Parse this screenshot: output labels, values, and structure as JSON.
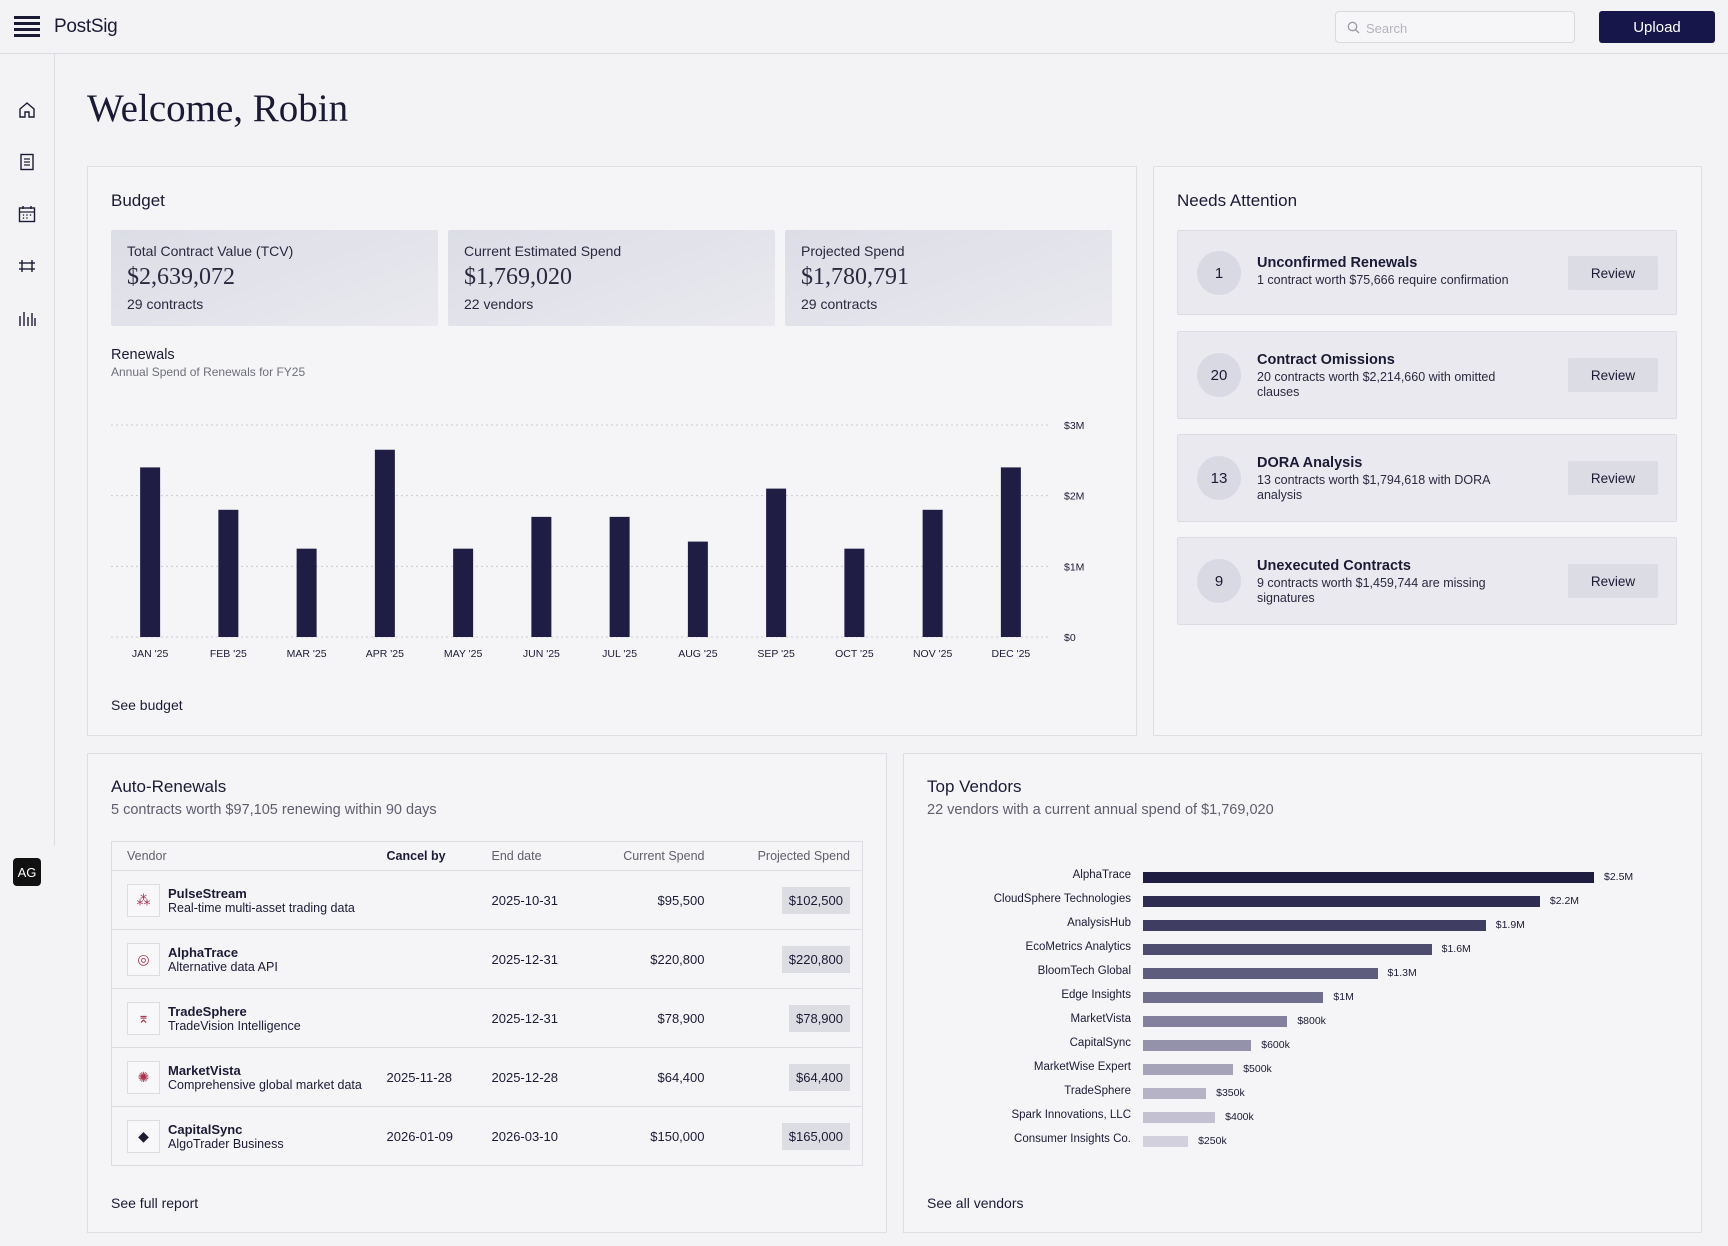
{
  "app": {
    "brand": "PostSig",
    "search_placeholder": "Search",
    "upload_label": "Upload",
    "avatar_initials": "AG"
  },
  "nav": [
    {
      "icon": "home-icon"
    },
    {
      "icon": "document-icon"
    },
    {
      "icon": "calendar-icon"
    },
    {
      "icon": "sliders-icon"
    },
    {
      "icon": "bar-chart-icon"
    }
  ],
  "welcome": "Welcome, Robin",
  "budget": {
    "title": "Budget",
    "stats": [
      {
        "label": "Total Contract Value (TCV)",
        "value": "$2,639,072",
        "count": "29 contracts"
      },
      {
        "label": "Current Estimated Spend",
        "value": "$1,769,020",
        "count": "22 vendors"
      },
      {
        "label": "Projected Spend",
        "value": "$1,780,791",
        "count": "29 contracts"
      }
    ],
    "renewals_title": "Renewals",
    "renewals_sub": "Annual Spend of Renewals for FY25",
    "see_link": "See budget"
  },
  "chart_data": [
    {
      "type": "bar",
      "title": "Renewals",
      "subtitle": "Annual Spend of Renewals for FY25",
      "categories": [
        "JAN '25",
        "FEB '25",
        "MAR '25",
        "APR '25",
        "MAY '25",
        "JUN '25",
        "JUL '25",
        "AUG '25",
        "SEP '25",
        "OCT '25",
        "NOV '25",
        "DEC '25"
      ],
      "values": [
        2400000,
        1800000,
        1250000,
        2650000,
        1250000,
        1700000,
        1700000,
        1350000,
        2100000,
        1250000,
        1800000,
        2400000
      ],
      "ylim": [
        0,
        3000000
      ],
      "yticks": [
        "$0",
        "$1M",
        "$2M",
        "$3M"
      ],
      "xlabel": "",
      "ylabel": "",
      "grid": true,
      "color": "#201d45"
    },
    {
      "type": "bar",
      "orientation": "horizontal",
      "title": "Top Vendors",
      "subtitle": "22 vendors with a current annual spend of $1,769,020",
      "categories": [
        "AlphaTrace",
        "CloudSphere Technologies",
        "AnalysisHub",
        "EcoMetrics Analytics",
        "BloomTech Global",
        "Edge Insights",
        "MarketVista",
        "CapitalSync",
        "MarketWise Expert",
        "TradeSphere",
        "Spark Innovations, LLC",
        "Consumer Insights Co."
      ],
      "values": [
        2500000,
        2200000,
        1900000,
        1600000,
        1300000,
        1000000,
        800000,
        600000,
        500000,
        350000,
        400000,
        250000
      ],
      "value_labels": [
        "$2.5M",
        "$2.2M",
        "$1.9M",
        "$1.6M",
        "$1.3M",
        "$1M",
        "$800k",
        "$600k",
        "$500k",
        "$350k",
        "$400k",
        "$250k"
      ],
      "colors": [
        "#1e1c40",
        "#2e2c50",
        "#3f3d61",
        "#4e4c6f",
        "#5f5d7e",
        "#706e8d",
        "#82809c",
        "#9492ab",
        "#a5a3b8",
        "#b5b3c5",
        "#c3c1d1",
        "#d1d0dc"
      ]
    }
  ],
  "attention": {
    "title": "Needs Attention",
    "review_label": "Review",
    "items": [
      {
        "count": "1",
        "title": "Unconfirmed Renewals",
        "desc": "1 contract worth $75,666 require confirmation"
      },
      {
        "count": "20",
        "title": "Contract Omissions",
        "desc": "20 contracts worth $2,214,660 with omitted clauses"
      },
      {
        "count": "13",
        "title": "DORA Analysis",
        "desc": "13 contracts worth $1,794,618 with DORA analysis"
      },
      {
        "count": "9",
        "title": "Unexecuted Contracts",
        "desc": "9 contracts worth $1,459,744 are missing signatures"
      }
    ]
  },
  "auto_renewals": {
    "title": "Auto-Renewals",
    "sub": "5 contracts worth $97,105 renewing within 90 days",
    "columns": {
      "vendor": "Vendor",
      "cancel_by": "Cancel by",
      "end_date": "End date",
      "current": "Current Spend",
      "projected": "Projected Spend"
    },
    "rows": [
      {
        "logo": "pulse-logo-icon",
        "glyph": "⁂",
        "name": "PulseStream",
        "desc": "Real-time multi-asset trading data",
        "cancel_by": "",
        "end_date": "2025-10-31",
        "current": "$95,500",
        "projected": "$102,500"
      },
      {
        "logo": "alphatrace-logo-icon",
        "glyph": "◎",
        "name": "AlphaTrace",
        "desc": "Alternative data API",
        "cancel_by": "",
        "end_date": "2025-12-31",
        "current": "$220,800",
        "projected": "$220,800"
      },
      {
        "logo": "tradesphere-logo-icon",
        "glyph": "⌆",
        "name": "TradeSphere",
        "desc": "TradeVision Intelligence",
        "cancel_by": "",
        "end_date": "2025-12-31",
        "current": "$78,900",
        "projected": "$78,900"
      },
      {
        "logo": "marketvista-logo-icon",
        "glyph": "✺",
        "name": "MarketVista",
        "desc": "Comprehensive global market data",
        "cancel_by": "2025-11-28",
        "end_date": "2025-12-28",
        "current": "$64,400",
        "projected": "$64,400"
      },
      {
        "logo": "capitalsync-logo-icon",
        "glyph": "◆",
        "name": "CapitalSync",
        "desc": "AlgoTrader Business",
        "cancel_by": "2026-01-09",
        "end_date": "2026-03-10",
        "current": "$150,000",
        "projected": "$165,000"
      }
    ],
    "see_link": "See full report"
  },
  "top_vendors": {
    "title": "Top Vendors",
    "sub": "22 vendors with a current annual spend of $1,769,020",
    "see_link": "See all vendors"
  }
}
